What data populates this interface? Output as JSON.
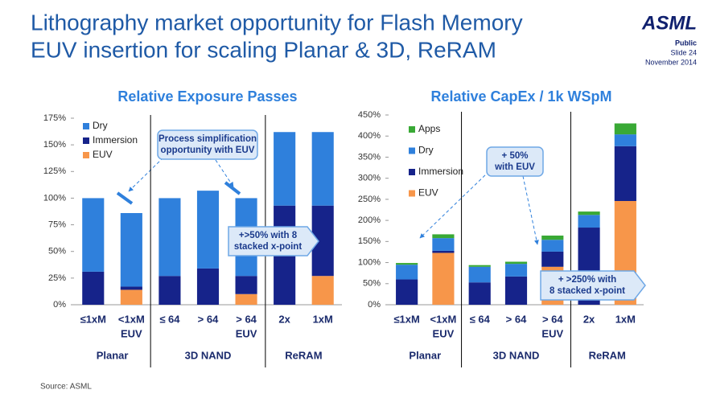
{
  "header": {
    "title": [
      "Lithography market opportunity for Flash Memory",
      "EUV insertion for scaling Planar & 3D, ReRAM"
    ],
    "logo": "ASML",
    "classification": "Public",
    "slide": "Slide 24",
    "date": "November 2014"
  },
  "footer": {
    "source": "Source: ASML"
  },
  "chart_data": [
    {
      "type": "stacked-bar",
      "title": "Relative Exposure Passes",
      "categories": [
        [
          "≤1xM"
        ],
        [
          "<1xM",
          "EUV"
        ],
        [
          "≤ 64"
        ],
        [
          "> 64"
        ],
        [
          "> 64",
          "EUV"
        ],
        [
          "2x"
        ],
        [
          "1xM"
        ]
      ],
      "groups": [
        "Planar",
        "3D NAND",
        "ReRAM"
      ],
      "series": [
        {
          "name": "Dry",
          "color": "#2f80dc",
          "values": [
            69,
            69,
            73,
            73,
            73,
            69,
            69
          ]
        },
        {
          "name": "Immersion",
          "color": "#16238a",
          "values": [
            31,
            3,
            27,
            34,
            17,
            93,
            66
          ]
        },
        {
          "name": "EUV",
          "color": "#f7964a",
          "values": [
            0,
            14,
            0,
            0,
            10,
            0,
            27
          ]
        }
      ],
      "ylim": [
        0,
        175
      ],
      "yticks": [
        {
          "value": 0,
          "label": "0%"
        },
        {
          "value": 25,
          "label": "25%"
        },
        {
          "value": 50,
          "label": "50%"
        },
        {
          "value": 75,
          "label": "75%"
        },
        {
          "value": 100,
          "label": "100%"
        },
        {
          "value": 125,
          "label": "125%"
        },
        {
          "value": 150,
          "label": "150%"
        },
        {
          "value": 175,
          "label": "175%"
        }
      ],
      "legend": "top-left",
      "annotations": [
        [
          "Process simplification",
          "opportunity with EUV"
        ],
        [
          "+>50% with 8",
          "stacked x-point"
        ]
      ]
    },
    {
      "type": "stacked-bar",
      "title": "Relative CapEx / 1k WSpM",
      "categories": [
        [
          "≤1xM"
        ],
        [
          "<1xM",
          "EUV"
        ],
        [
          "≤ 64"
        ],
        [
          "> 64"
        ],
        [
          "> 64",
          "EUV"
        ],
        [
          "2x"
        ],
        [
          "1xM"
        ]
      ],
      "groups": [
        "Planar",
        "3D NAND",
        "ReRAM"
      ],
      "series": [
        {
          "name": "Apps",
          "color": "#39a935",
          "values": [
            4,
            9,
            4,
            5,
            10,
            8,
            26
          ]
        },
        {
          "name": "Dry",
          "color": "#2f80dc",
          "values": [
            35,
            30,
            37,
            30,
            28,
            30,
            28
          ]
        },
        {
          "name": "Immersion",
          "color": "#16238a",
          "values": [
            60,
            5,
            53,
            67,
            36,
            183,
            130
          ]
        },
        {
          "name": "EUV",
          "color": "#f7964a",
          "values": [
            0,
            123,
            0,
            0,
            90,
            0,
            246
          ]
        }
      ],
      "ylim": [
        0,
        450
      ],
      "yticks": [
        {
          "value": 0,
          "label": "0%"
        },
        {
          "value": 50,
          "label": "50%"
        },
        {
          "value": 100,
          "label": "100%"
        },
        {
          "value": 150,
          "label": "150%"
        },
        {
          "value": 200,
          "label": "200%"
        },
        {
          "value": 250,
          "label": "250%"
        },
        {
          "value": 300,
          "label": "300%"
        },
        {
          "value": 350,
          "label": "350%"
        },
        {
          "value": 400,
          "label": "400%"
        },
        {
          "value": 450,
          "label": "450%"
        }
      ],
      "legend": "top-left",
      "annotations": [
        [
          "+ 50%",
          "with EUV"
        ],
        [
          "+ >250% with",
          "8 stacked x-point"
        ]
      ]
    }
  ]
}
